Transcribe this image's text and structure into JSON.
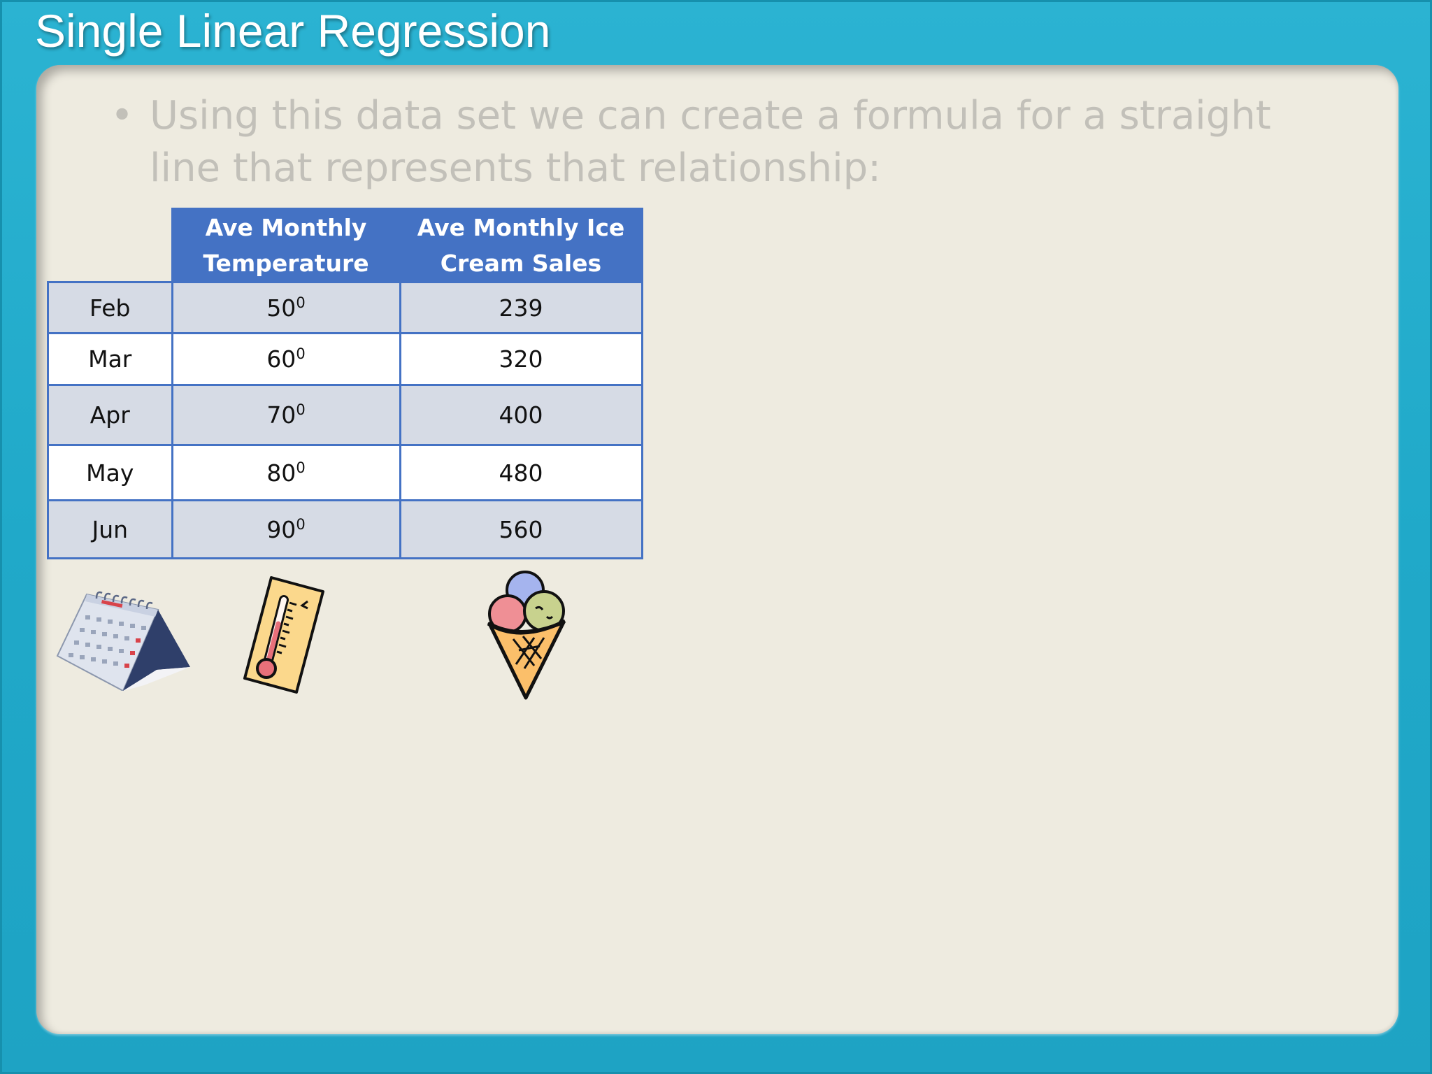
{
  "title": "Single Linear Regression",
  "bullet": {
    "symbol": "•",
    "text": "Using this data set we can create a formula for a straight line that represents that relationship:"
  },
  "table": {
    "headers": [
      "Ave  Monthly Temperature",
      "Ave Monthly Ice Cream Sales"
    ],
    "degree_symbol": "0",
    "rows": [
      {
        "month": "Feb",
        "temp": "50",
        "sales": "239"
      },
      {
        "month": "Mar",
        "temp": "60",
        "sales": "320"
      },
      {
        "month": "Apr",
        "temp": "70",
        "sales": "400"
      },
      {
        "month": "May",
        "temp": "80",
        "sales": "480"
      },
      {
        "month": "Jun",
        "temp": "90",
        "sales": "560"
      }
    ]
  },
  "icons": [
    "calendar-icon",
    "thermometer-icon",
    "ice-cream-cone-icon"
  ],
  "colors": {
    "frame": "#23aecf",
    "panel": "#eeebe0",
    "table_header": "#4472c4",
    "row_shaded": "#d6dbe5",
    "bullet_text": "#c2c0b9"
  }
}
